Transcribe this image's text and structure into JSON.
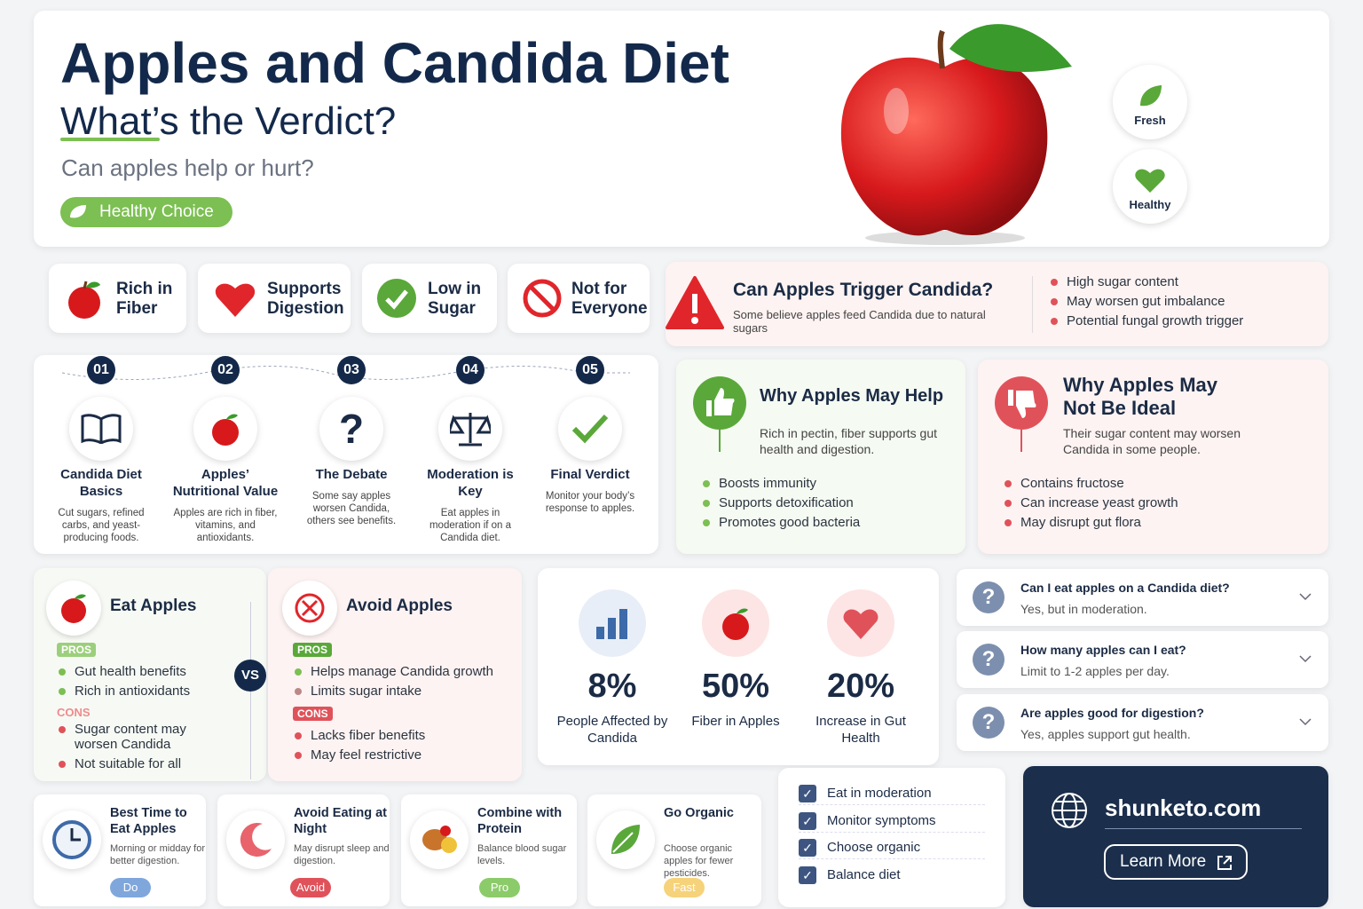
{
  "header": {
    "title": "Apples and Candida Diet",
    "subtitle": "What’s the Verdict?",
    "question": "Can apples help or hurt?",
    "badge": "Healthy Choice",
    "tags": [
      "Fresh",
      "Healthy"
    ]
  },
  "features": [
    "Rich in Fiber",
    "Supports Digestion",
    "Low in Sugar",
    "Not for Everyone"
  ],
  "trigger": {
    "title": "Can Apples Trigger Candida?",
    "text": "Some believe apples feed Candida due to natural sugars",
    "points": [
      "High sugar content",
      "May worsen gut imbalance",
      "Potential fungal growth trigger"
    ]
  },
  "steps": [
    {
      "num": "01",
      "title": "Candida Diet Basics",
      "text": "Cut sugars, refined carbs, and yeast-producing foods."
    },
    {
      "num": "02",
      "title": "Apples’ Nutritional Value",
      "text": "Apples are rich in fiber, vitamins, and antioxidants."
    },
    {
      "num": "03",
      "title": "The Debate",
      "text": "Some say apples worsen Candida, others see benefits."
    },
    {
      "num": "04",
      "title": "Moderation is Key",
      "text": "Eat apples in moderation if on a Candida diet."
    },
    {
      "num": "05",
      "title": "Final Verdict",
      "text": "Monitor your body’s response to apples."
    }
  ],
  "help": {
    "title": "Why Apples May Help",
    "text": "Rich in pectin, fiber supports gut health and digestion.",
    "points": [
      "Boosts immunity",
      "Supports detoxification",
      "Promotes good bacteria"
    ]
  },
  "not_ideal": {
    "title": "Why Apples May Not Be Ideal",
    "text": "Their sugar content may worsen Candida in some people.",
    "points": [
      "Contains fructose",
      "Can increase yeast growth",
      "May disrupt gut flora"
    ]
  },
  "eat": {
    "title": "Eat Apples",
    "pros_label": "PROS",
    "pros": [
      "Gut health benefits",
      "Rich in antioxidants"
    ],
    "cons_label": "CONS",
    "cons": [
      "Sugar content may worsen Candida",
      "Not suitable for all"
    ]
  },
  "vs": "VS",
  "avoid": {
    "title": "Avoid Apples",
    "pros_label": "PROS",
    "pros": [
      "Helps manage Candida growth",
      "Limits sugar intake"
    ],
    "cons_label": "CONS",
    "cons": [
      "Lacks fiber benefits",
      "May feel restrictive"
    ]
  },
  "stats": [
    {
      "value": "8%",
      "label": "People Affected by Candida"
    },
    {
      "value": "50%",
      "label": "Fiber in Apples"
    },
    {
      "value": "20%",
      "label": "Increase in Gut Health"
    }
  ],
  "faq": [
    {
      "q": "Can I eat apples on a Candida diet?",
      "a": "Yes, but in moderation."
    },
    {
      "q": "How many apples can I eat?",
      "a": "Limit to 1-2 apples per day."
    },
    {
      "q": "Are apples good for digestion?",
      "a": "Yes, apples support gut health."
    }
  ],
  "tips": [
    {
      "title": "Best Time to Eat Apples",
      "text": "Morning or midday for better digestion.",
      "tag": "Do"
    },
    {
      "title": "Avoid Eating at Night",
      "text": "May disrupt sleep and digestion.",
      "tag": "Avoid"
    },
    {
      "title": "Combine with Protein",
      "text": "Balance blood sugar levels.",
      "tag": "Pro"
    },
    {
      "title": "Go Organic",
      "text": "Choose organic apples for fewer pesticides.",
      "tag": "Fast"
    }
  ],
  "checklist": [
    "Eat in moderation",
    "Monitor symptoms",
    "Choose organic",
    "Balance diet"
  ],
  "cta": {
    "site": "shunketo.com",
    "button": "Learn More"
  }
}
